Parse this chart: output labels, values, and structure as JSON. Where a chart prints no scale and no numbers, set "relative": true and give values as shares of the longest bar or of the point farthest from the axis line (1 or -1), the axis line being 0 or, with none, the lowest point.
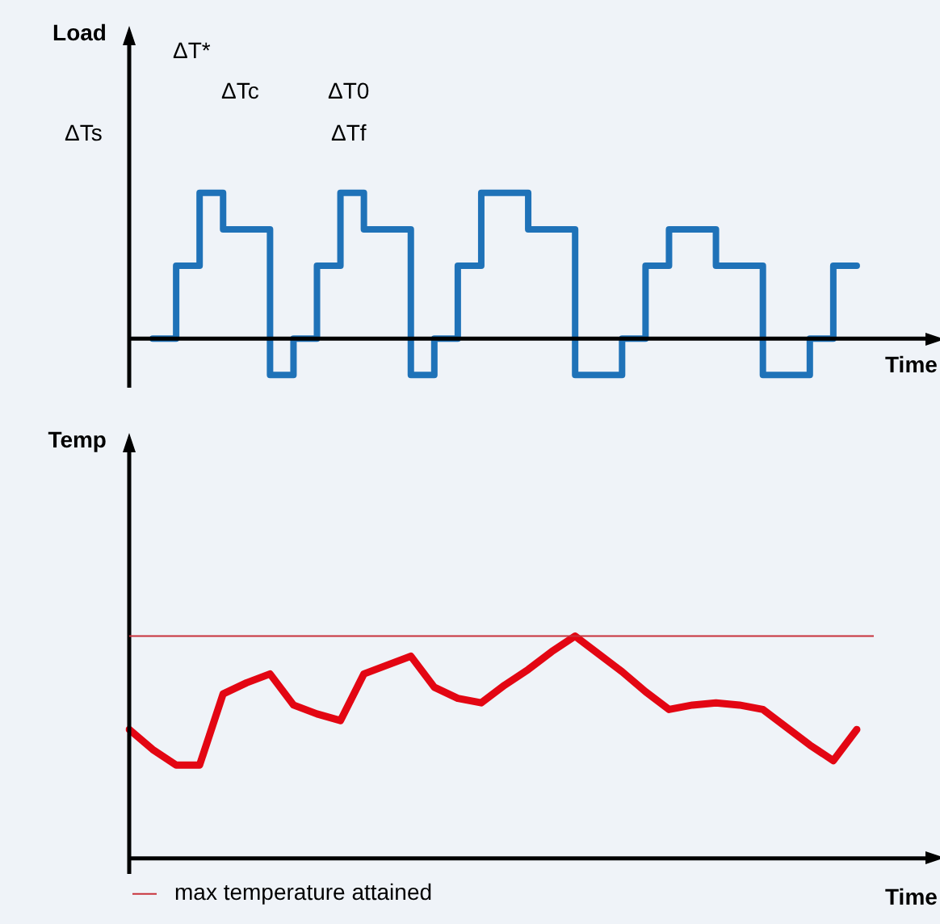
{
  "chart_data": [
    {
      "type": "step",
      "ylabel": "Load",
      "xlabel": "Time",
      "relative": true,
      "categories": [
        null,
        null,
        null,
        null,
        null,
        null,
        null,
        null,
        null,
        null,
        null,
        null,
        null,
        null,
        null,
        null,
        null,
        null,
        null,
        null,
        null,
        null,
        null,
        null,
        null,
        null,
        null,
        null,
        null,
        null,
        null,
        null,
        null
      ],
      "values": [
        null,
        0,
        0.5,
        1,
        0.75,
        0.75,
        -0.25,
        0,
        0.5,
        1,
        0.75,
        0.75,
        -0.25,
        0,
        0.5,
        1,
        1,
        0.75,
        0.75,
        -0.25,
        -0.25,
        0,
        0.5,
        0.75,
        0.75,
        0.5,
        0.5,
        -0.25,
        -0.25,
        0,
        0.5,
        0.5,
        null
      ],
      "color": "#1f72b8",
      "annotations": [
        "ΔT*",
        "ΔTc",
        "ΔT0",
        "ΔTf",
        "ΔTs"
      ]
    },
    {
      "type": "line",
      "ylabel": "Temp",
      "xlabel": "Time",
      "relative": true,
      "categories": [
        null,
        null,
        null,
        null,
        null,
        null,
        null,
        null,
        null,
        null,
        null,
        null,
        null,
        null,
        null,
        null,
        null,
        null,
        null,
        null,
        null,
        null,
        null,
        null,
        null,
        null,
        null,
        null,
        null,
        null,
        null,
        null,
        null
      ],
      "values": [
        0.58,
        0.49,
        0.42,
        0.42,
        0.74,
        0.79,
        0.83,
        0.69,
        0.65,
        0.62,
        0.83,
        0.87,
        0.91,
        0.77,
        0.72,
        0.7,
        0.78,
        0.85,
        0.93,
        1,
        0.92,
        0.84,
        0.75,
        0.67,
        0.69,
        0.7,
        0.69,
        0.67,
        0.59,
        0.51,
        0.44,
        0.58,
        null
      ],
      "color": "#e30613",
      "ref_lines": [
        {
          "axis": "y",
          "value": 1,
          "label": "max temperature attained",
          "color": "#c8313a"
        }
      ]
    }
  ]
}
